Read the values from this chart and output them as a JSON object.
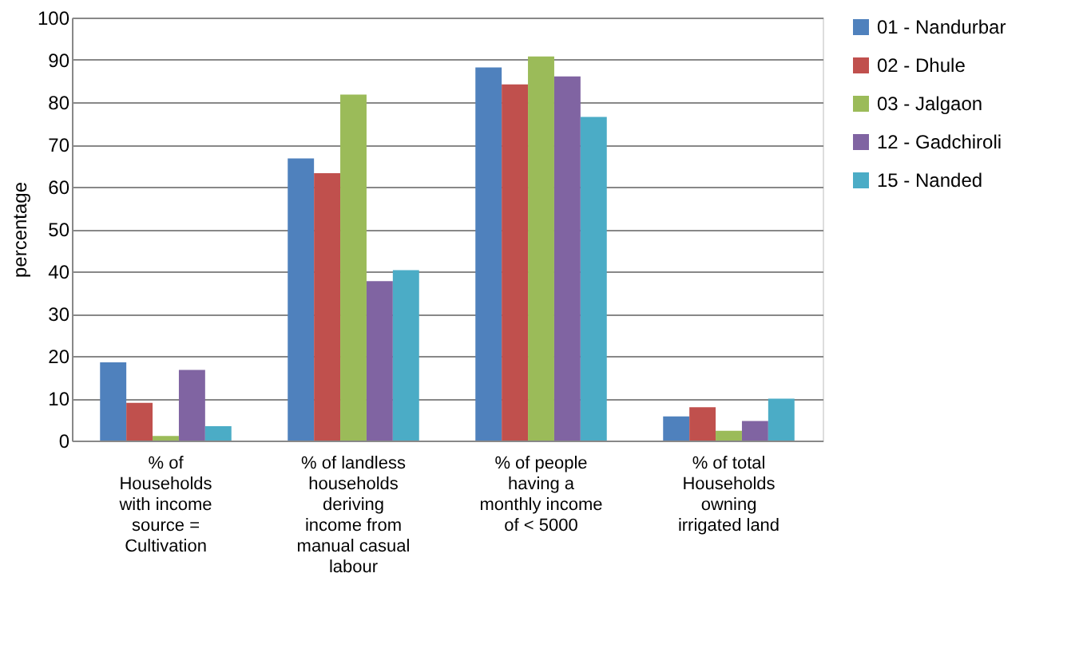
{
  "chart_data": {
    "type": "bar",
    "ylabel": "percentage",
    "categories": [
      "% of Households with income source = Cultivation",
      "% of  landless households deriving income from manual casual labour",
      "% of  people having a monthly income of  < 5000",
      "% of total Households owning irrigated land"
    ],
    "series": [
      {
        "name": "01 - Nandurbar",
        "color": "#4f81bd",
        "values": [
          18.5,
          66.7,
          88.2,
          5.7
        ]
      },
      {
        "name": "02 - Dhule",
        "color": "#c0504d",
        "values": [
          8.9,
          63.2,
          84.2,
          7.9
        ]
      },
      {
        "name": "03 - Jalgaon",
        "color": "#9bbb59",
        "values": [
          1.1,
          81.8,
          90.8,
          2.3
        ]
      },
      {
        "name": "12 - Gadchiroli",
        "color": "#8064a2",
        "values": [
          16.7,
          37.7,
          86.1,
          4.6
        ]
      },
      {
        "name": "15 - Nanded",
        "color": "#4bacc6",
        "values": [
          3.4,
          40.3,
          76.5,
          9.9
        ]
      }
    ],
    "ylim": [
      0,
      100
    ],
    "yticks": [
      0,
      10,
      20,
      30,
      40,
      50,
      60,
      70,
      80,
      90,
      100
    ],
    "grid": "y",
    "legend": "right"
  }
}
